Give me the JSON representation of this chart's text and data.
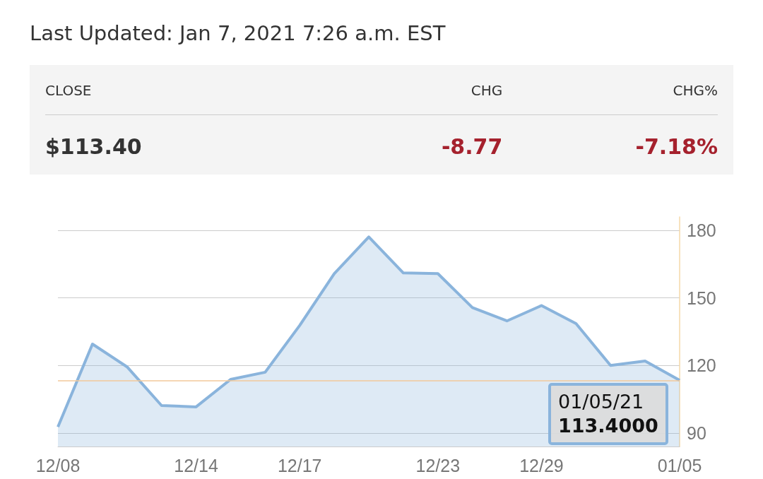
{
  "chart_data": [
    {
      "type": "other",
      "title": "Last Updated: Jan 7, 2021 7:26 a.m. EST",
      "categories": [
        "CLOSE",
        "CHG",
        "CHG%"
      ],
      "value_labels": [
        "$113.40",
        "-8.77",
        "-7.18%"
      ]
    },
    {
      "type": "area",
      "categories": [
        "12/08",
        null,
        null,
        null,
        "12/14",
        null,
        null,
        "12/17",
        null,
        null,
        null,
        "12/23",
        null,
        null,
        "12/29",
        null,
        null,
        null,
        "01/05"
      ],
      "series": [
        {
          "color": "#8ab4dc",
          "values": [
            92.7,
            129.5,
            119.4,
            102.2,
            101.6,
            113.8,
            117,
            137.8,
            160.8,
            177.1,
            161.1,
            160.8,
            145.7,
            139.8,
            146.6,
            138.6,
            120,
            122,
            113.4
          ]
        }
      ],
      "ylim": [
        84,
        186
      ],
      "yticks": [
        90,
        120,
        150,
        180
      ],
      "grid": "y",
      "marker": "none",
      "line_style": "solid",
      "ref_lines": [
        {
          "axis": "y",
          "value": 113.4,
          "color": "#f2c89a"
        }
      ],
      "annotations": [
        {
          "text": "01/05/21",
          "x": "01/05",
          "y": 113.4
        },
        {
          "text": "113.4000",
          "x": "01/05",
          "y": 113.4
        }
      ]
    }
  ]
}
